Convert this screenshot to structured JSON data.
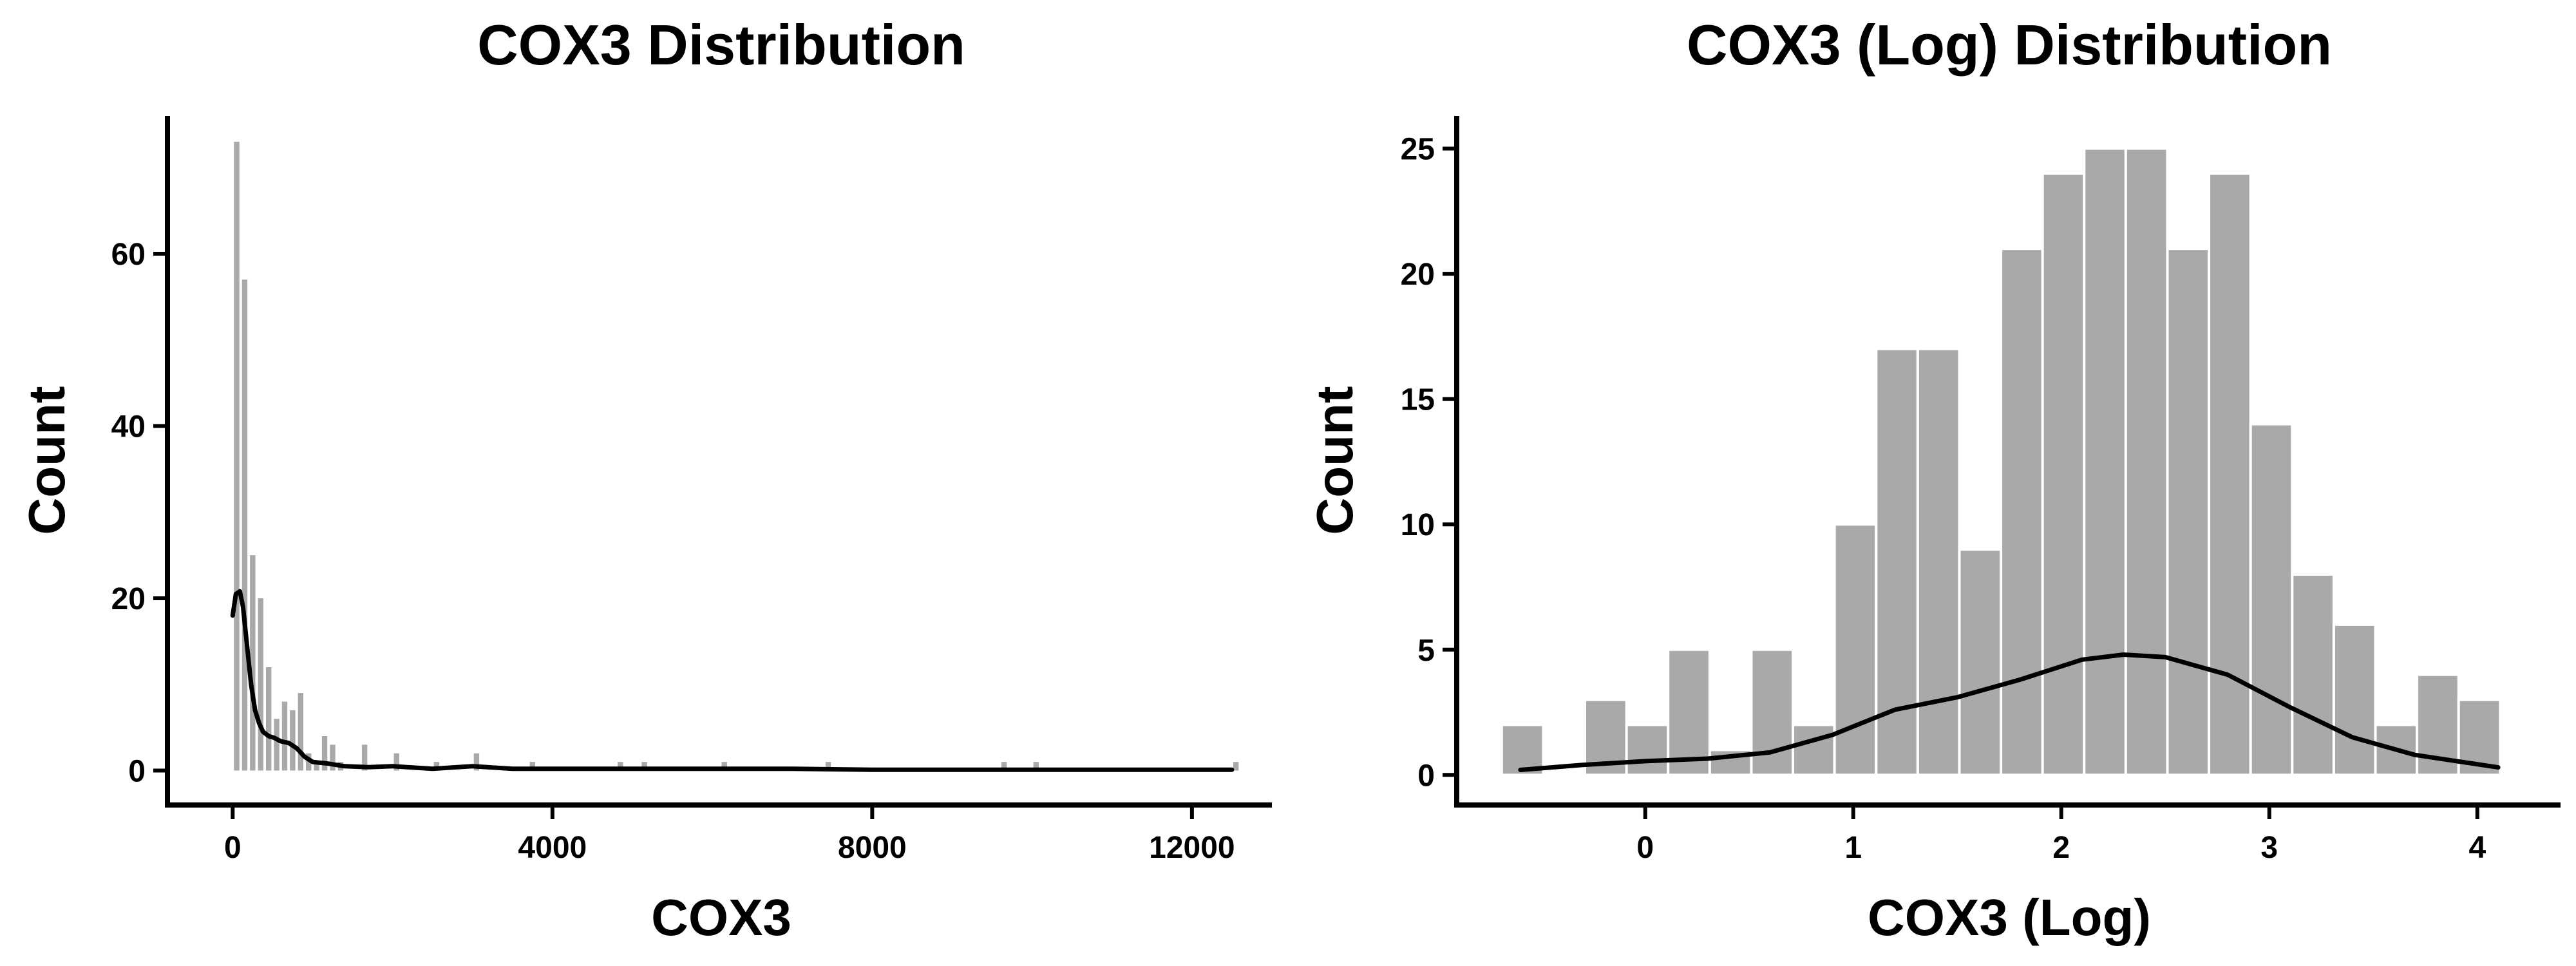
{
  "chart_data": [
    {
      "type": "bar",
      "title": "COX3 Distribution",
      "xlabel": "COX3",
      "ylabel": "Count",
      "xlim": [
        -800,
        13000
      ],
      "ylim": [
        -4,
        76
      ],
      "xticks": [
        0,
        4000,
        8000,
        12000
      ],
      "xtick_labels": [
        "0",
        "4000",
        "8000",
        "12000"
      ],
      "yticks": [
        0,
        20,
        40,
        60
      ],
      "ytick_labels": [
        "0",
        "20",
        "40",
        "60"
      ],
      "bin_width": 100,
      "bins": [
        {
          "x": 0,
          "count": 73
        },
        {
          "x": 100,
          "count": 57
        },
        {
          "x": 200,
          "count": 25
        },
        {
          "x": 300,
          "count": 20
        },
        {
          "x": 400,
          "count": 12
        },
        {
          "x": 500,
          "count": 6
        },
        {
          "x": 600,
          "count": 8
        },
        {
          "x": 700,
          "count": 7
        },
        {
          "x": 800,
          "count": 9
        },
        {
          "x": 900,
          "count": 2
        },
        {
          "x": 1000,
          "count": 1
        },
        {
          "x": 1100,
          "count": 4
        },
        {
          "x": 1200,
          "count": 3
        },
        {
          "x": 1300,
          "count": 1
        },
        {
          "x": 1600,
          "count": 3
        },
        {
          "x": 2000,
          "count": 2
        },
        {
          "x": 2500,
          "count": 1
        },
        {
          "x": 3000,
          "count": 2
        },
        {
          "x": 3700,
          "count": 1
        },
        {
          "x": 4800,
          "count": 1
        },
        {
          "x": 5100,
          "count": 1
        },
        {
          "x": 6100,
          "count": 1
        },
        {
          "x": 7400,
          "count": 1
        },
        {
          "x": 9600,
          "count": 1
        },
        {
          "x": 10000,
          "count": 1
        },
        {
          "x": 12500,
          "count": 1
        }
      ],
      "kde": {
        "x": [
          0,
          40,
          90,
          130,
          180,
          230,
          280,
          330,
          380,
          450,
          520,
          600,
          700,
          800,
          900,
          1000,
          1200,
          1400,
          1700,
          2000,
          2500,
          3000,
          3500,
          4000,
          5000,
          6000,
          7000,
          8000,
          9000,
          10000,
          11000,
          12000,
          12500
        ],
        "y": [
          18,
          20.5,
          20.8,
          19,
          14.5,
          10,
          7,
          5.5,
          4.5,
          4,
          3.8,
          3.4,
          3.2,
          2.6,
          1.6,
          1,
          0.8,
          0.5,
          0.4,
          0.5,
          0.2,
          0.5,
          0.2,
          0.2,
          0.2,
          0.2,
          0.2,
          0.1,
          0.1,
          0.1,
          0.1,
          0.1,
          0.1
        ]
      }
    },
    {
      "type": "bar",
      "title": "COX3 (Log) Distribution",
      "xlabel": "COX3 (Log)",
      "ylabel": "Count",
      "xlim": [
        -0.9,
        4.4
      ],
      "ylim": [
        -1.2,
        26.3
      ],
      "xticks": [
        0,
        1,
        2,
        3,
        4
      ],
      "xtick_labels": [
        "0",
        "1",
        "2",
        "3",
        "4"
      ],
      "yticks": [
        0,
        5,
        10,
        15,
        20,
        25
      ],
      "ytick_labels": [
        "0",
        "5",
        "10",
        "15",
        "20",
        "25"
      ],
      "bin_edges": [
        -0.69,
        -0.49,
        -0.29,
        -0.09,
        0.11,
        0.31,
        0.51,
        0.71,
        0.91,
        1.11,
        1.31,
        1.51,
        1.71,
        1.91,
        2.11,
        2.31,
        2.51,
        2.71,
        2.91,
        3.11,
        3.31,
        3.51,
        3.71,
        3.91,
        4.11
      ],
      "counts": [
        2,
        0,
        3,
        2,
        5,
        1,
        5,
        2,
        10,
        17,
        17,
        9,
        21,
        24,
        25,
        25,
        21,
        24,
        14,
        8,
        6,
        2,
        4,
        3
      ],
      "kde": {
        "x": [
          -0.6,
          -0.3,
          0,
          0.3,
          0.6,
          0.9,
          1.2,
          1.5,
          1.8,
          2.1,
          2.3,
          2.5,
          2.8,
          3.1,
          3.4,
          3.7,
          4.1
        ],
        "y": [
          0.2,
          0.4,
          0.55,
          0.65,
          0.9,
          1.6,
          2.6,
          3.1,
          3.8,
          4.6,
          4.8,
          4.7,
          4.0,
          2.7,
          1.5,
          0.8,
          0.3
        ]
      }
    }
  ]
}
